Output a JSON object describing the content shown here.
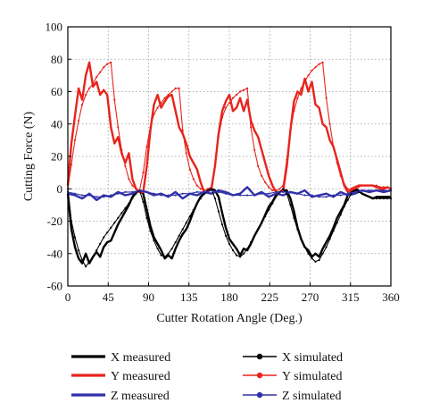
{
  "chart_data": {
    "type": "line",
    "xlabel": "Cutter Rotation Angle (Deg.)",
    "ylabel": "Cutting Force (N)",
    "xlim": [
      0,
      360
    ],
    "ylim": [
      -60,
      100
    ],
    "xticks": [
      0,
      45,
      90,
      135,
      180,
      225,
      270,
      315,
      360
    ],
    "yticks": [
      -60,
      -40,
      -20,
      0,
      20,
      40,
      60,
      80,
      100
    ],
    "grid": true,
    "legend_position": "bottom",
    "series": [
      {
        "name": "X measured",
        "color": "#000000",
        "style": "measured",
        "x": [
          0,
          4,
          8,
          12,
          16,
          20,
          24,
          28,
          32,
          36,
          40,
          44,
          48,
          52,
          56,
          60,
          64,
          68,
          72,
          76,
          80,
          84,
          88,
          92,
          96,
          100,
          104,
          108,
          112,
          116,
          120,
          124,
          128,
          132,
          136,
          140,
          144,
          148,
          152,
          156,
          160,
          164,
          168,
          172,
          176,
          180,
          184,
          188,
          192,
          196,
          200,
          204,
          208,
          212,
          216,
          220,
          224,
          228,
          232,
          236,
          240,
          244,
          248,
          252,
          256,
          260,
          264,
          268,
          272,
          276,
          280,
          284,
          288,
          292,
          296,
          300,
          304,
          308,
          312,
          316,
          320,
          324,
          328,
          332,
          336,
          340,
          344,
          348,
          352,
          356,
          360
        ],
        "y": [
          -3,
          -25,
          -36,
          -43,
          -46,
          -40,
          -46,
          -42,
          -39,
          -42,
          -36,
          -33,
          -32,
          -27,
          -22,
          -18,
          -14,
          -10,
          -5,
          -2,
          -1,
          -3,
          -13,
          -23,
          -30,
          -34,
          -38,
          -43,
          -41,
          -43,
          -37,
          -32,
          -28,
          -25,
          -20,
          -14,
          -9,
          -5,
          -3,
          -1,
          0,
          -1,
          -5,
          -15,
          -24,
          -31,
          -34,
          -37,
          -41,
          -37,
          -38,
          -34,
          -29,
          -25,
          -21,
          -16,
          -11,
          -8,
          -4,
          -2,
          -1,
          -1,
          -6,
          -14,
          -24,
          -31,
          -36,
          -38,
          -42,
          -40,
          -42,
          -37,
          -33,
          -29,
          -24,
          -18,
          -14,
          -10,
          -4,
          -2,
          0,
          -1,
          -3,
          -4,
          -5,
          -6,
          -5,
          -5,
          -5,
          -5,
          -5
        ]
      },
      {
        "name": "Y measured",
        "color": "#e8241c",
        "style": "measured",
        "x": [
          0,
          4,
          8,
          12,
          16,
          20,
          24,
          28,
          32,
          36,
          40,
          44,
          48,
          52,
          56,
          60,
          64,
          68,
          72,
          76,
          80,
          84,
          88,
          92,
          96,
          100,
          104,
          108,
          112,
          116,
          120,
          124,
          128,
          132,
          136,
          140,
          144,
          148,
          152,
          156,
          160,
          164,
          168,
          172,
          176,
          180,
          184,
          188,
          192,
          196,
          200,
          204,
          208,
          212,
          216,
          220,
          224,
          228,
          232,
          236,
          240,
          244,
          248,
          252,
          256,
          260,
          264,
          268,
          272,
          276,
          280,
          284,
          288,
          292,
          296,
          300,
          304,
          308,
          312,
          316,
          320,
          324,
          328,
          332,
          336,
          340,
          344,
          348,
          352,
          356,
          360
        ],
        "y": [
          2,
          28,
          45,
          62,
          55,
          70,
          78,
          63,
          66,
          58,
          61,
          58,
          38,
          28,
          32,
          22,
          16,
          22,
          6,
          0,
          -2,
          -2,
          14,
          36,
          52,
          58,
          50,
          54,
          57,
          58,
          48,
          38,
          34,
          28,
          20,
          16,
          12,
          4,
          -2,
          -2,
          0,
          14,
          34,
          48,
          54,
          58,
          48,
          50,
          56,
          48,
          55,
          42,
          36,
          32,
          24,
          16,
          8,
          2,
          -2,
          -2,
          -1,
          14,
          36,
          54,
          60,
          58,
          68,
          60,
          66,
          52,
          50,
          40,
          38,
          30,
          26,
          18,
          10,
          2,
          -2,
          0,
          1,
          2,
          2,
          2,
          2,
          2,
          1,
          0,
          0,
          1,
          0
        ]
      },
      {
        "name": "Z measured",
        "color": "#3030a8",
        "style": "measured",
        "x": [
          0,
          8,
          16,
          24,
          32,
          40,
          48,
          56,
          64,
          72,
          80,
          88,
          96,
          104,
          112,
          120,
          128,
          136,
          144,
          152,
          160,
          168,
          176,
          184,
          192,
          200,
          208,
          216,
          224,
          232,
          240,
          248,
          256,
          264,
          272,
          280,
          288,
          296,
          304,
          312,
          320,
          328,
          336,
          344,
          352,
          360
        ],
        "y": [
          -3,
          -4,
          -6,
          -3,
          -7,
          -4,
          -5,
          -2,
          -4,
          -3,
          -1,
          -2,
          -4,
          -3,
          -5,
          -2,
          -6,
          -3,
          -4,
          -2,
          -3,
          -1,
          -2,
          -4,
          -3,
          1,
          -4,
          -2,
          -5,
          -3,
          -4,
          -2,
          -3,
          -1,
          -5,
          -4,
          -3,
          -5,
          -2,
          -4,
          -3,
          -1,
          -2,
          -1,
          -2,
          -1
        ]
      },
      {
        "name": "X simulated",
        "color": "#000000",
        "style": "simulated",
        "x": [
          0,
          4,
          8,
          12,
          16,
          20,
          24,
          28,
          32,
          36,
          40,
          44,
          48,
          52,
          56,
          60,
          64,
          68,
          72,
          76,
          80,
          84,
          88,
          92,
          96,
          100,
          104,
          108,
          112,
          116,
          120,
          124,
          128,
          132,
          136,
          140,
          144,
          148,
          152,
          156,
          160,
          164,
          168,
          172,
          176,
          180,
          184,
          188,
          192,
          196,
          200,
          204,
          208,
          212,
          216,
          220,
          224,
          228,
          232,
          236,
          240,
          244,
          248,
          252,
          256,
          260,
          264,
          268,
          272,
          276,
          280,
          284,
          288,
          292,
          296,
          300,
          304,
          308,
          312,
          316,
          320,
          324,
          328,
          332,
          336,
          340,
          344,
          348,
          352,
          356,
          360
        ],
        "y": [
          0,
          -20,
          -30,
          -38,
          -44,
          -48,
          -45,
          -42,
          -38,
          -34,
          -30,
          -27,
          -24,
          -21,
          -18,
          -15,
          -12,
          -9,
          -6,
          -3,
          -1,
          -8,
          -18,
          -26,
          -32,
          -37,
          -41,
          -42,
          -40,
          -37,
          -33,
          -29,
          -25,
          -21,
          -17,
          -13,
          -9,
          -6,
          -3,
          -1,
          0,
          -6,
          -14,
          -22,
          -29,
          -34,
          -38,
          -41,
          -42,
          -40,
          -37,
          -33,
          -29,
          -25,
          -21,
          -17,
          -13,
          -9,
          -5,
          -2,
          0,
          -3,
          -10,
          -18,
          -25,
          -31,
          -36,
          -40,
          -43,
          -45,
          -44,
          -40,
          -36,
          -31,
          -26,
          -21,
          -16,
          -11,
          -7,
          -3,
          -1,
          -2,
          -3,
          -4,
          -5,
          -6,
          -6,
          -6,
          -6,
          -6,
          -6
        ]
      },
      {
        "name": "Y simulated",
        "color": "#e8241c",
        "style": "simulated",
        "x": [
          0,
          4,
          8,
          12,
          16,
          20,
          24,
          28,
          32,
          36,
          40,
          44,
          48,
          52,
          56,
          60,
          64,
          68,
          72,
          76,
          80,
          84,
          88,
          92,
          96,
          100,
          104,
          108,
          112,
          116,
          120,
          124,
          128,
          132,
          136,
          140,
          144,
          148,
          152,
          156,
          160,
          164,
          168,
          172,
          176,
          180,
          184,
          188,
          192,
          196,
          200,
          204,
          208,
          212,
          216,
          220,
          224,
          228,
          232,
          236,
          240,
          244,
          248,
          252,
          256,
          260,
          264,
          268,
          272,
          276,
          280,
          284,
          288,
          292,
          296,
          300,
          304,
          308,
          312,
          316,
          320,
          324,
          328,
          332,
          336,
          340,
          344,
          348,
          352,
          356,
          360
        ],
        "y": [
          0,
          15,
          30,
          42,
          52,
          58,
          62,
          65,
          69,
          72,
          75,
          77,
          78,
          55,
          38,
          24,
          14,
          6,
          2,
          0,
          -1,
          10,
          26,
          38,
          46,
          50,
          53,
          56,
          58,
          60,
          62,
          62,
          36,
          22,
          12,
          6,
          2,
          0,
          -1,
          0,
          1,
          14,
          32,
          44,
          50,
          53,
          56,
          58,
          60,
          61,
          62,
          38,
          24,
          14,
          8,
          4,
          1,
          -1,
          -1,
          0,
          2,
          18,
          36,
          48,
          56,
          62,
          66,
          70,
          73,
          75,
          77,
          78,
          56,
          40,
          26,
          16,
          8,
          3,
          0,
          -1,
          0,
          1,
          2,
          2,
          2,
          2,
          2,
          1,
          1,
          1,
          0
        ]
      },
      {
        "name": "Z simulated",
        "color": "#3030a8",
        "style": "simulated",
        "x": [
          0,
          8,
          16,
          24,
          32,
          40,
          48,
          56,
          64,
          72,
          80,
          88,
          96,
          104,
          112,
          120,
          128,
          136,
          144,
          152,
          160,
          168,
          176,
          184,
          192,
          200,
          208,
          216,
          224,
          232,
          240,
          248,
          256,
          264,
          272,
          280,
          288,
          296,
          304,
          312,
          320,
          328,
          336,
          344,
          352,
          360
        ],
        "y": [
          -2,
          -3,
          -4,
          -4,
          -5,
          -5,
          -4,
          -3,
          -2,
          -2,
          -1,
          -2,
          -3,
          -4,
          -4,
          -4,
          -3,
          -3,
          -2,
          -2,
          -1,
          -2,
          -3,
          -4,
          -4,
          -4,
          -4,
          -3,
          -3,
          -2,
          -2,
          -2,
          -3,
          -4,
          -4,
          -5,
          -5,
          -4,
          -4,
          -3,
          -2,
          -1,
          -1,
          -1,
          -1,
          -1
        ]
      }
    ]
  }
}
